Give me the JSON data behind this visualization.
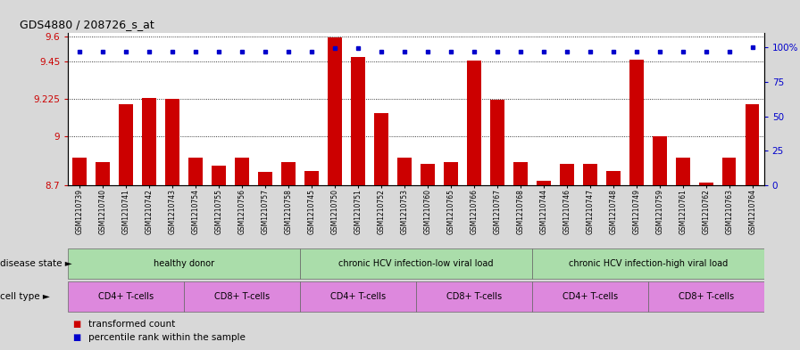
{
  "title": "GDS4880 / 208726_s_at",
  "samples": [
    "GSM1210739",
    "GSM1210740",
    "GSM1210741",
    "GSM1210742",
    "GSM1210743",
    "GSM1210754",
    "GSM1210755",
    "GSM1210756",
    "GSM1210757",
    "GSM1210758",
    "GSM1210745",
    "GSM1210750",
    "GSM1210751",
    "GSM1210752",
    "GSM1210753",
    "GSM1210760",
    "GSM1210765",
    "GSM1210766",
    "GSM1210767",
    "GSM1210768",
    "GSM1210744",
    "GSM1210746",
    "GSM1210747",
    "GSM1210748",
    "GSM1210749",
    "GSM1210759",
    "GSM1210761",
    "GSM1210762",
    "GSM1210763",
    "GSM1210764"
  ],
  "bar_values": [
    8.87,
    8.84,
    9.19,
    9.23,
    9.225,
    8.87,
    8.82,
    8.87,
    8.78,
    8.84,
    8.79,
    9.595,
    9.475,
    9.14,
    8.87,
    8.83,
    8.84,
    9.455,
    9.22,
    8.84,
    8.73,
    8.83,
    8.83,
    8.79,
    9.46,
    9.0,
    8.87,
    8.72,
    8.87,
    9.19
  ],
  "percentile_values": [
    97,
    97,
    97,
    97,
    97,
    97,
    97,
    97,
    97,
    97,
    97,
    99,
    99,
    97,
    97,
    97,
    97,
    97,
    97,
    97,
    97,
    97,
    97,
    97,
    97,
    97,
    97,
    97,
    97,
    100
  ],
  "ylim_left": [
    8.7,
    9.62
  ],
  "ylim_right": [
    0,
    110
  ],
  "yticks_left": [
    8.7,
    9.0,
    9.225,
    9.45,
    9.6
  ],
  "ytick_labels_left": [
    "8.7",
    "9",
    "9.225",
    "9.45",
    "9.6"
  ],
  "yticks_right": [
    0,
    25,
    50,
    75,
    100
  ],
  "ytick_labels_right": [
    "0",
    "25",
    "50",
    "75",
    "100%"
  ],
  "bar_color": "#cc0000",
  "dot_color": "#0000cc",
  "background_color": "#d8d8d8",
  "plot_bg_color": "#ffffff",
  "ds_groups": [
    {
      "label": "healthy donor",
      "start": 0,
      "end": 10
    },
    {
      "label": "chronic HCV infection-low viral load",
      "start": 10,
      "end": 20
    },
    {
      "label": "chronic HCV infection-high viral load",
      "start": 20,
      "end": 30
    }
  ],
  "ct_groups": [
    {
      "label": "CD4+ T-cells",
      "start": 0,
      "end": 5
    },
    {
      "label": "CD8+ T-cells",
      "start": 5,
      "end": 10
    },
    {
      "label": "CD4+ T-cells",
      "start": 10,
      "end": 15
    },
    {
      "label": "CD8+ T-cells",
      "start": 15,
      "end": 20
    },
    {
      "label": "CD4+ T-cells",
      "start": 20,
      "end": 25
    },
    {
      "label": "CD8+ T-cells",
      "start": 25,
      "end": 30
    }
  ],
  "ds_color": "#aaddaa",
  "ct_color": "#dd88dd",
  "disease_label": "disease state",
  "cell_label": "cell type",
  "legend_bar_label": "transformed count",
  "legend_dot_label": "percentile rank within the sample"
}
